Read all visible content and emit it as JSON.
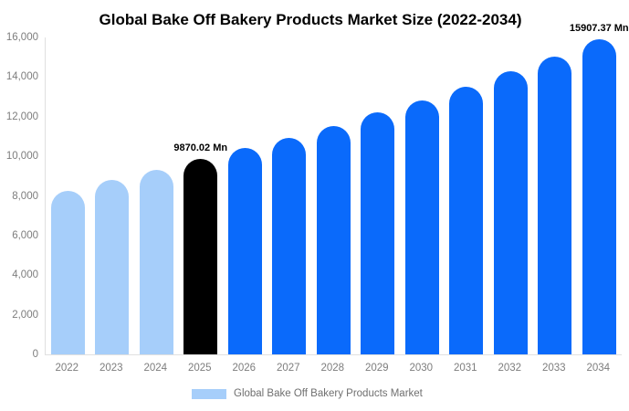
{
  "title": "Global Bake Off Bakery Products Market Size (2022-2034)",
  "colors": {
    "historical": "#a6cefa",
    "highlight": "#000000",
    "forecast": "#0a6afb",
    "axis_line": "#e0e0e0",
    "axis_text": "#7d7d7d",
    "title_text": "#000000"
  },
  "legend": {
    "label": "Global Bake Off Bakery Products Market"
  },
  "y_axis": {
    "ticks": [
      "16,000",
      "14,000",
      "12,000",
      "10,000",
      "8,000",
      "6,000",
      "4,000",
      "2,000",
      "0"
    ]
  },
  "chart_data": {
    "type": "bar",
    "title": "Global Bake Off Bakery Products Market Size (2022-2034)",
    "unit": "Mn",
    "categories": [
      "2022",
      "2023",
      "2024",
      "2025",
      "2026",
      "2027",
      "2028",
      "2029",
      "2030",
      "2031",
      "2032",
      "2033",
      "2034"
    ],
    "values": [
      8250,
      8800,
      9300,
      9870.02,
      10400,
      10950,
      11550,
      12200,
      12800,
      13500,
      14300,
      15050,
      15907.37
    ],
    "bar_roles": [
      "historical",
      "historical",
      "historical",
      "highlight",
      "forecast",
      "forecast",
      "forecast",
      "forecast",
      "forecast",
      "forecast",
      "forecast",
      "forecast",
      "forecast"
    ],
    "bar_labels": [
      "",
      "",
      "",
      "9870.02 Mn",
      "",
      "",
      "",
      "",
      "",
      "",
      "",
      "",
      "15907.37 Mn"
    ],
    "xlabel": "",
    "ylabel": "",
    "ylim": [
      0,
      16000
    ],
    "y_tick_interval": 2000,
    "grid": false,
    "legend_position": "bottom",
    "legend_entries": [
      "Global Bake Off Bakery Products Market"
    ]
  }
}
